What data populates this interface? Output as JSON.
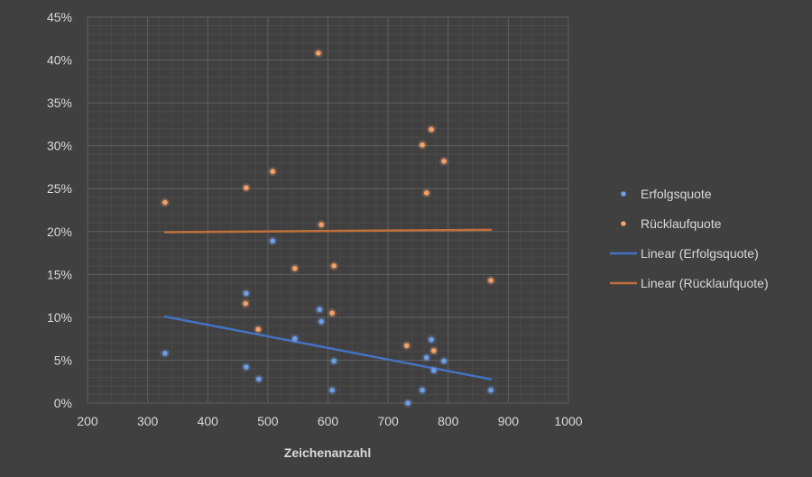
{
  "chart_data": {
    "type": "scatter",
    "xlabel": "Zeichenanzahl",
    "ylabel": "",
    "xlim": [
      200,
      1000
    ],
    "ylim": [
      0,
      45
    ],
    "x_ticks": [
      "200",
      "300",
      "400",
      "500",
      "600",
      "700",
      "800",
      "900",
      "1000"
    ],
    "y_ticks": [
      "0%",
      "5%",
      "10%",
      "15%",
      "20%",
      "25%",
      "30%",
      "35%",
      "40%",
      "45%"
    ],
    "grid": true,
    "legend_position": "right",
    "series": [
      {
        "name": "Erfolgsquote",
        "color": "#6f9ee8",
        "points": [
          [
            329,
            5.8
          ],
          [
            464,
            4.2
          ],
          [
            464,
            12.8
          ],
          [
            485,
            2.8
          ],
          [
            508,
            18.9
          ],
          [
            545,
            7.5
          ],
          [
            586,
            10.9
          ],
          [
            589,
            9.5
          ],
          [
            610,
            4.9
          ],
          [
            607,
            1.5
          ],
          [
            733,
            0
          ],
          [
            757,
            1.5
          ],
          [
            764,
            5.3
          ],
          [
            772,
            7.4
          ],
          [
            776,
            3.8
          ],
          [
            793,
            4.9
          ],
          [
            871,
            1.5
          ]
        ]
      },
      {
        "name": "Rücklaufquote",
        "color": "#f4a06a",
        "points": [
          [
            329,
            23.4
          ],
          [
            464,
            25.1
          ],
          [
            463,
            11.6
          ],
          [
            484,
            8.6
          ],
          [
            508,
            27.0
          ],
          [
            545,
            15.7
          ],
          [
            584,
            40.8
          ],
          [
            589,
            20.8
          ],
          [
            610,
            16.0
          ],
          [
            607,
            10.5
          ],
          [
            731,
            6.7
          ],
          [
            757,
            30.1
          ],
          [
            764,
            24.5
          ],
          [
            772,
            31.9
          ],
          [
            776,
            6.1
          ],
          [
            793,
            28.2
          ],
          [
            871,
            14.3
          ]
        ]
      }
    ],
    "trendlines": [
      {
        "name": "Linear (Erfolgsquote)",
        "series": 0,
        "color": "#4472c4"
      },
      {
        "name": "Linear (Rücklaufquote)",
        "series": 1,
        "color": "#c0703a"
      }
    ]
  }
}
